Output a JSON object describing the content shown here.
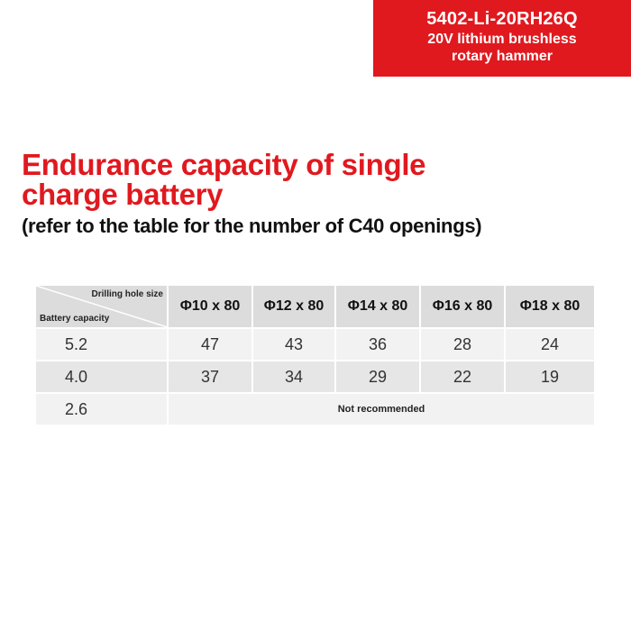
{
  "badge": {
    "model": "5402-Li-20RH26Q",
    "desc_line1": "20V lithium brushless",
    "desc_line2": "rotary hammer"
  },
  "heading": {
    "line1": "Endurance capacity of single",
    "line2": "charge battery",
    "sub": "(refer to the table for the number of C40 openings)"
  },
  "table": {
    "corner_top": "Drilling hole size",
    "corner_bottom": "Battery capacity",
    "columns": [
      "Φ10 x 80",
      "Φ12 x 80",
      "Φ14 x 80",
      "Φ16 x 80",
      "Φ18 x 80"
    ],
    "rows": [
      {
        "capacity": "5.2",
        "values": [
          "47",
          "43",
          "36",
          "28",
          "24"
        ]
      },
      {
        "capacity": "4.0",
        "values": [
          "37",
          "34",
          "29",
          "22",
          "19"
        ]
      },
      {
        "capacity": "2.6",
        "note": "Not recommended"
      }
    ]
  },
  "colors": {
    "accent": "#e0191f",
    "header_bg": "#dcdcdc",
    "row_light": "#f2f2f2",
    "row_mid": "#e6e6e6"
  }
}
